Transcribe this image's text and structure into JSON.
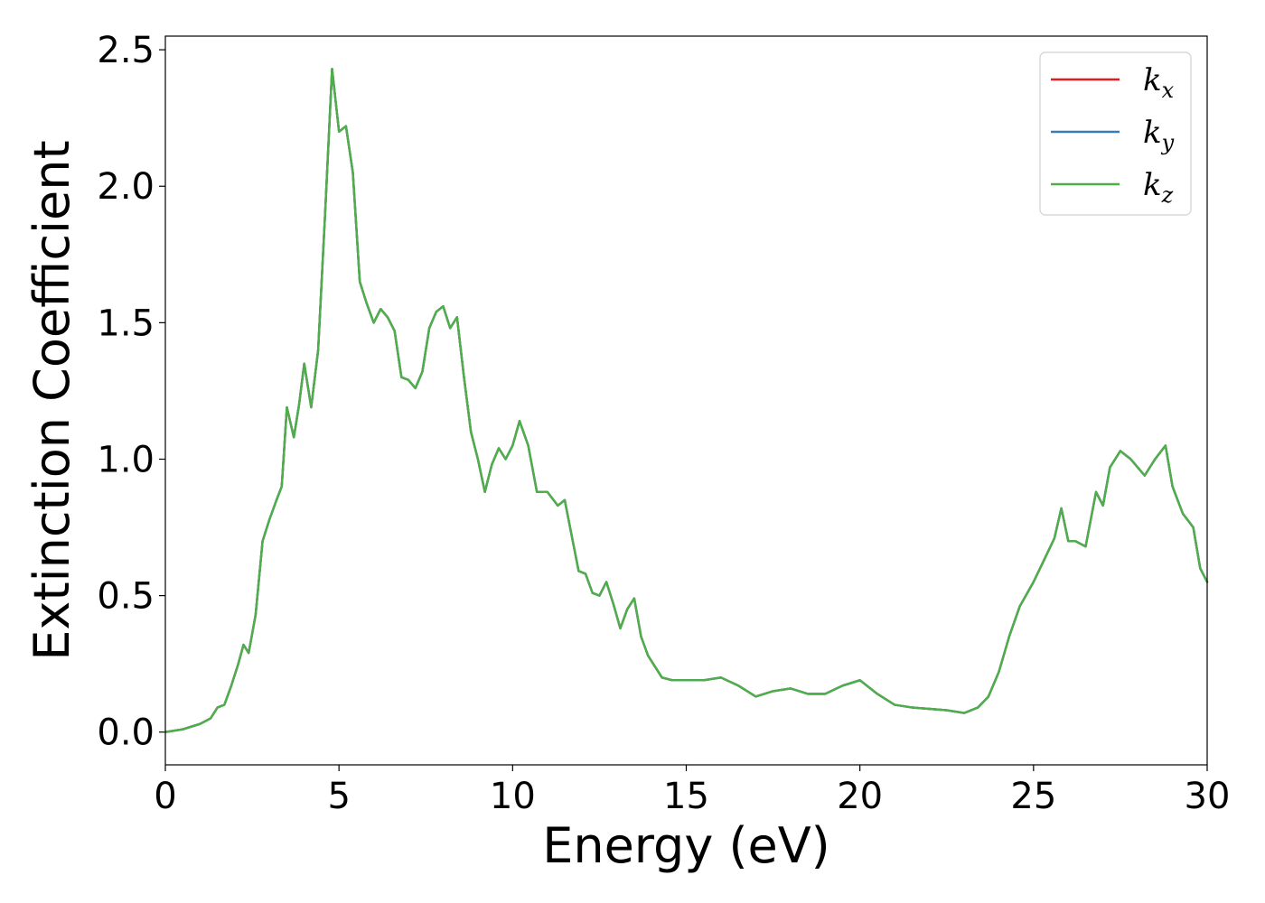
{
  "chart_data": {
    "type": "line",
    "xlabel": "Energy (eV)",
    "ylabel": "Extinction Coefficient",
    "xlim": [
      0,
      30
    ],
    "ylim": [
      -0.12,
      2.55
    ],
    "xticks": [
      0,
      5,
      10,
      15,
      20,
      25,
      30
    ],
    "yticks": [
      0.0,
      0.5,
      1.0,
      1.5,
      2.0,
      2.5
    ],
    "xtick_labels": [
      "0",
      "5",
      "10",
      "15",
      "20",
      "25",
      "30"
    ],
    "ytick_labels": [
      "0.0",
      "0.5",
      "1.0",
      "1.5",
      "2.0",
      "2.5"
    ],
    "grid": false,
    "legend": {
      "placement": "top-right"
    },
    "series": [
      {
        "name": "k",
        "sub": "x",
        "color": "#e41a1c"
      },
      {
        "name": "k",
        "sub": "y",
        "color": "#377eb8"
      },
      {
        "name": "k",
        "sub": "z",
        "color": "#4daf4a"
      }
    ],
    "x": [
      0,
      0.5,
      1.0,
      1.3,
      1.5,
      1.7,
      1.9,
      2.1,
      2.25,
      2.4,
      2.6,
      2.8,
      3.0,
      3.2,
      3.35,
      3.5,
      3.7,
      3.85,
      4.0,
      4.2,
      4.4,
      4.6,
      4.8,
      5.0,
      5.2,
      5.4,
      5.6,
      5.8,
      6.0,
      6.2,
      6.4,
      6.6,
      6.8,
      7.0,
      7.2,
      7.4,
      7.6,
      7.8,
      8.0,
      8.2,
      8.4,
      8.6,
      8.8,
      9.0,
      9.2,
      9.4,
      9.6,
      9.8,
      10.0,
      10.2,
      10.45,
      10.7,
      11.0,
      11.3,
      11.5,
      11.7,
      11.9,
      12.1,
      12.3,
      12.5,
      12.7,
      12.9,
      13.1,
      13.3,
      13.5,
      13.7,
      13.9,
      14.1,
      14.3,
      14.6,
      15.0,
      15.5,
      16.0,
      16.5,
      17.0,
      17.5,
      18.0,
      18.5,
      19.0,
      19.5,
      20.0,
      20.5,
      21.0,
      21.5,
      22.0,
      22.5,
      23.0,
      23.4,
      23.7,
      24.0,
      24.3,
      24.6,
      25.0,
      25.3,
      25.6,
      25.8,
      26.0,
      26.2,
      26.5,
      26.8,
      27.0,
      27.2,
      27.5,
      27.8,
      28.0,
      28.2,
      28.5,
      28.8,
      29.0,
      29.3,
      29.6,
      29.8,
      30.0
    ],
    "y": [
      0.0,
      0.01,
      0.03,
      0.05,
      0.09,
      0.1,
      0.17,
      0.25,
      0.32,
      0.29,
      0.43,
      0.7,
      0.78,
      0.85,
      0.9,
      1.19,
      1.08,
      1.2,
      1.35,
      1.19,
      1.4,
      1.9,
      2.43,
      2.2,
      2.22,
      2.05,
      1.65,
      1.57,
      1.5,
      1.55,
      1.52,
      1.47,
      1.3,
      1.29,
      1.26,
      1.32,
      1.48,
      1.54,
      1.56,
      1.48,
      1.52,
      1.3,
      1.1,
      1.0,
      0.88,
      0.98,
      1.04,
      1.0,
      1.05,
      1.14,
      1.05,
      0.88,
      0.88,
      0.83,
      0.85,
      0.72,
      0.59,
      0.58,
      0.51,
      0.5,
      0.55,
      0.47,
      0.38,
      0.45,
      0.49,
      0.35,
      0.28,
      0.24,
      0.2,
      0.19,
      0.19,
      0.19,
      0.2,
      0.17,
      0.13,
      0.15,
      0.16,
      0.14,
      0.14,
      0.17,
      0.19,
      0.14,
      0.1,
      0.09,
      0.085,
      0.08,
      0.07,
      0.09,
      0.13,
      0.22,
      0.35,
      0.46,
      0.55,
      0.63,
      0.71,
      0.82,
      0.7,
      0.7,
      0.68,
      0.88,
      0.83,
      0.97,
      1.03,
      1.0,
      0.97,
      0.94,
      1.0,
      1.05,
      0.9,
      0.8,
      0.75,
      0.6,
      0.55
    ]
  }
}
